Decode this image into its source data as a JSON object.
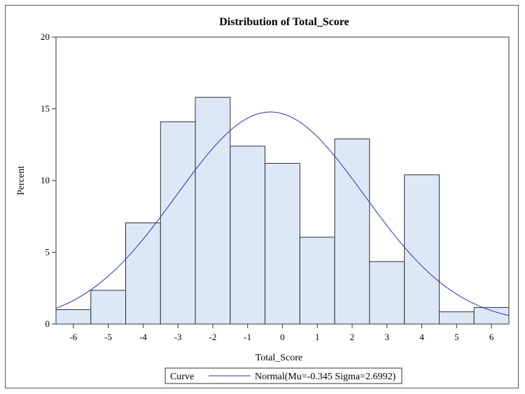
{
  "chart_data": {
    "type": "bar",
    "title": "Distribution of Total_Score",
    "xlabel": "Total_Score",
    "ylabel": "Percent",
    "x": [
      -6,
      -5,
      -4,
      -3,
      -2,
      -1,
      0,
      1,
      2,
      3,
      4,
      5,
      6
    ],
    "values": [
      1.0,
      2.35,
      7.05,
      14.1,
      15.8,
      12.4,
      11.2,
      6.05,
      12.9,
      4.35,
      10.4,
      0.85,
      1.15
    ],
    "xlim": [
      -6.5,
      6.5
    ],
    "ylim": [
      0,
      20
    ],
    "xticks": [
      "-6",
      "-5",
      "-4",
      "-3",
      "-2",
      "-1",
      "0",
      "1",
      "2",
      "3",
      "4",
      "5",
      "6"
    ],
    "yticks": [
      "0",
      "5",
      "10",
      "15",
      "20"
    ],
    "grid": false,
    "bar_color": "#dde8f7",
    "bar_edge_color": "#2e2e2e",
    "curve": {
      "type": "normal",
      "mu": -0.345,
      "sigma": 2.6992,
      "color": "#2f2fb4"
    },
    "legend": {
      "position": "bottom",
      "title": "Curve",
      "entries": [
        "Normal(Mu=-0.345 Sigma=2.6992)"
      ]
    }
  }
}
